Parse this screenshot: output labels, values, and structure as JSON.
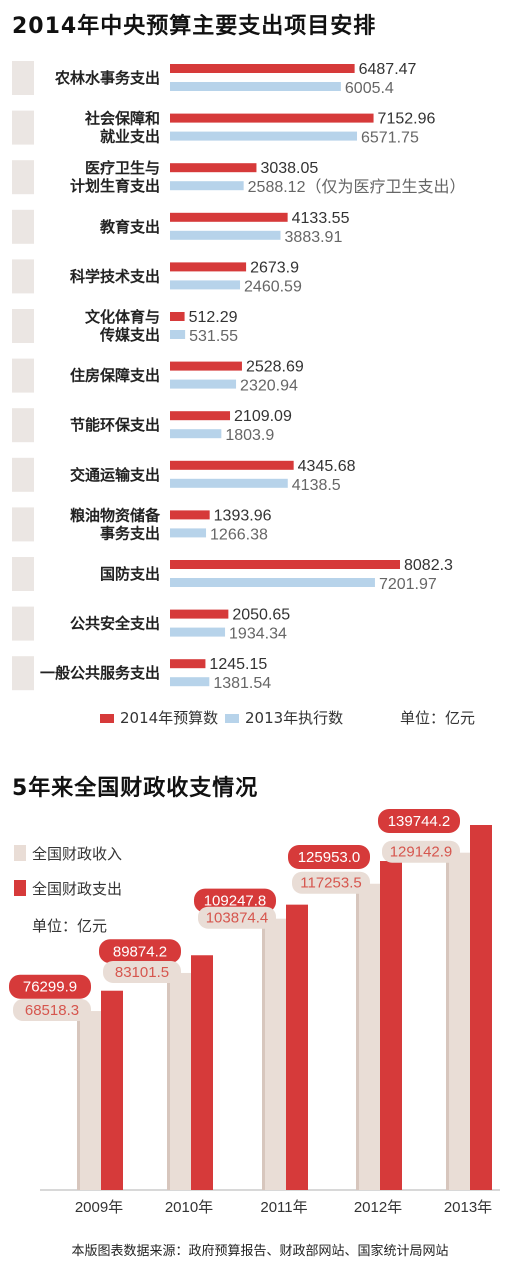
{
  "chart_data": [
    {
      "type": "bar",
      "title": "2014年中央预算主要支出项目安排",
      "categories": [
        "农林水事务支出",
        "社会保障和就业支出",
        "医疗卫生与计划生育支出",
        "教育支出",
        "科学技术支出",
        "文化体育与传媒支出",
        "住房保障支出",
        "节能环保支出",
        "交通运输支出",
        "粮油物资储备事务支出",
        "国防支出",
        "公共安全支出",
        "一般公共服务支出"
      ],
      "category_lines": [
        [
          "农林水事务支出"
        ],
        [
          "社会保障和",
          "就业支出"
        ],
        [
          "医疗卫生与",
          "计划生育支出"
        ],
        [
          "教育支出"
        ],
        [
          "科学技术支出"
        ],
        [
          "文化体育与",
          "传媒支出"
        ],
        [
          "住房保障支出"
        ],
        [
          "节能环保支出"
        ],
        [
          "交通运输支出"
        ],
        [
          "粮油物资储备",
          "事务支出"
        ],
        [
          "国防支出"
        ],
        [
          "公共安全支出"
        ],
        [
          "一般公共服务支出"
        ]
      ],
      "series": [
        {
          "name": "2014年预算数",
          "color": "#d63a3a",
          "values": [
            6487.47,
            7152.96,
            3038.05,
            4133.55,
            2673.9,
            512.29,
            2528.69,
            2109.09,
            4345.68,
            1393.96,
            8082.3,
            2050.65,
            1245.15
          ],
          "labels": [
            "6487.47",
            "7152.96",
            "3038.05",
            "4133.55",
            "2673.9",
            "512.29",
            "2528.69",
            "2109.09",
            "4345.68",
            "1393.96",
            "8082.3",
            "2050.65",
            "1245.15"
          ]
        },
        {
          "name": "2013年执行数",
          "color": "#b7d3ea",
          "values": [
            6005.4,
            6571.75,
            2588.12,
            3883.91,
            2460.59,
            531.55,
            2320.94,
            1803.9,
            4138.5,
            1266.38,
            7201.97,
            1934.34,
            1381.54
          ],
          "labels": [
            "6005.4",
            "6571.75",
            "2588.12（仅为医疗卫生支出）",
            "3883.91",
            "2460.59",
            "531.55",
            "2320.94",
            "1803.9",
            "4138.5",
            "1266.38",
            "7201.97",
            "1934.34",
            "1381.54"
          ]
        }
      ],
      "unit_label": "单位：亿元"
    },
    {
      "type": "bar",
      "title": "5年来全国财政收支情况",
      "categories": [
        "2009年",
        "2010年",
        "2011年",
        "2012年",
        "2013年"
      ],
      "series": [
        {
          "name": "全国财政收入",
          "color": "#e9ddd6",
          "values": [
            68518.3,
            83101.5,
            103874.4,
            117253.5,
            129142.9
          ],
          "labels": [
            "68518.3",
            "83101.5",
            "103874.4",
            "117253.5",
            "129142.9"
          ]
        },
        {
          "name": "全国财政支出",
          "color": "#d63a3a",
          "values": [
            76299.9,
            89874.2,
            109247.8,
            125953.0,
            139744.2
          ],
          "labels": [
            "76299.9",
            "89874.2",
            "109247.8",
            "125953.0",
            "139744.2"
          ]
        }
      ],
      "unit_label": "单位：亿元"
    }
  ],
  "source_note": "本版图表数据来源：政府预算报告、财政部网站、国家统计局网站"
}
